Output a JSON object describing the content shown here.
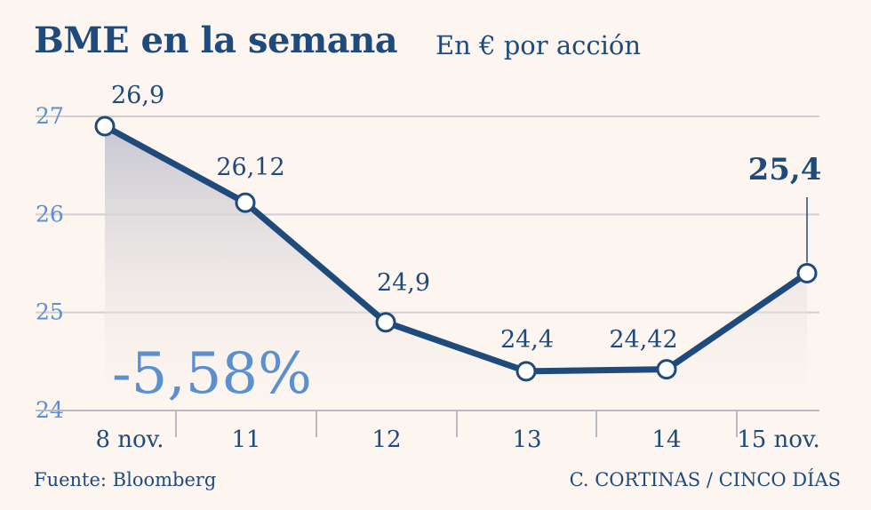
{
  "header": {
    "title": "BME en la semana",
    "subtitle": "En € por acción"
  },
  "footer": {
    "source": "Fuente: Bloomberg",
    "credit": "C. CORTINAS / CINCO DÍAS"
  },
  "colors": {
    "line": "#1f4a7c",
    "axis_text": "#5b8fcf",
    "grid": "#cfcfd4",
    "fill_top": "#c9c9d3",
    "background": "#fdf5ef"
  },
  "chart_data": {
    "type": "line",
    "categories": [
      "8 nov.",
      "11",
      "12",
      "13",
      "14",
      "15 nov."
    ],
    "values": [
      26.9,
      26.12,
      24.9,
      24.4,
      24.42,
      25.4
    ],
    "data_labels": [
      "26,9",
      "26,12",
      "24,9",
      "24,4",
      "24,42",
      "25,4"
    ],
    "yticks": [
      24,
      25,
      26,
      27
    ],
    "ylim": [
      24,
      27.1
    ],
    "grid": true,
    "area_fill": true,
    "annotation": "-5,58%"
  }
}
